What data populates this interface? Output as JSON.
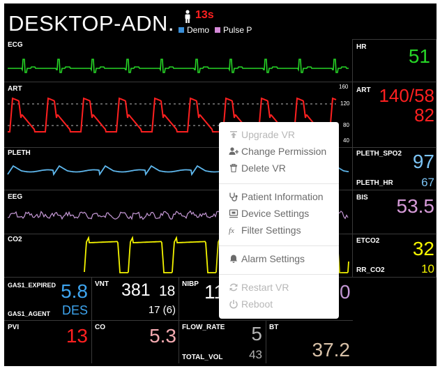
{
  "header": {
    "title": "DESKTOP-ADN.",
    "timer": "13s",
    "legend": [
      {
        "label": "Demo",
        "color": "#3a8fd8"
      },
      {
        "label": "Pulse P",
        "color": "#d58ad8"
      }
    ]
  },
  "waveforms": {
    "ecg": {
      "label": "ECG",
      "color": "#27d627"
    },
    "art": {
      "label": "ART",
      "color": "#ff2020",
      "scale": [
        "160",
        "120",
        "80",
        "40"
      ]
    },
    "pleth": {
      "label": "PLETH",
      "color": "#5fb8ee"
    },
    "eeg": {
      "label": "EEG",
      "color": "#c79ad8"
    },
    "co2": {
      "label": "CO2",
      "color": "#f5f500"
    }
  },
  "vitals": {
    "hr": {
      "label": "HR",
      "value": "51",
      "color": "#27d627"
    },
    "art": {
      "label": "ART",
      "value1": "140/58",
      "value2": "82",
      "color": "#ff2020"
    },
    "pleth": {
      "label1": "PLETH_SPO2",
      "value1": "97",
      "label2": "PLETH_HR",
      "value2": "67",
      "color": "#7cc4f5"
    },
    "bis": {
      "label": "BIS",
      "value": "53.5",
      "color": "#d79bd9"
    },
    "etco2": {
      "label1": "ETCO2",
      "value1": "32",
      "label2": "RR_CO2",
      "value2": "10",
      "color": "#f5f500"
    }
  },
  "bottom": {
    "gas": {
      "label1": "GAS1_EXPIRED",
      "value1": "5.8",
      "label2": "GAS1_AGENT",
      "value2": "DES",
      "color": "#3ea5f0"
    },
    "vnt": {
      "label": "VNT",
      "value1": "381",
      "value2": "18",
      "value3": "17 (6)"
    },
    "nibp": {
      "label": "NIBP",
      "value": "11",
      "tail": "0",
      "color": "#ffffff",
      "tail_color": "#c79ad8"
    },
    "pvi": {
      "label": "PVI",
      "value": "13",
      "color": "#ff2020"
    },
    "co": {
      "label": "CO",
      "value": "5.3",
      "color": "#f4aab0"
    },
    "flow": {
      "label1": "FLOW_RATE",
      "value1": "5",
      "label2": "TOTAL_VOL",
      "value2": "43"
    },
    "bt": {
      "label": "BT",
      "value": "37.2",
      "color": "#d8c1a8"
    }
  },
  "context_menu": {
    "items": [
      {
        "label": "Upgrade VR",
        "icon": "upload-icon",
        "enabled": false
      },
      {
        "label": "Change Permission",
        "icon": "user-plus-icon",
        "enabled": true
      },
      {
        "label": "Delete VR",
        "icon": "trash-icon",
        "enabled": true
      },
      {
        "label": "Patient Information",
        "icon": "stethoscope-icon",
        "enabled": true
      },
      {
        "label": "Device Settings",
        "icon": "device-icon",
        "enabled": true
      },
      {
        "label": "Filter Settings",
        "icon": "function-icon",
        "enabled": true
      },
      {
        "label": "Alarm Settings",
        "icon": "bell-icon",
        "enabled": true
      },
      {
        "label": "Restart VR",
        "icon": "refresh-icon",
        "enabled": false
      },
      {
        "label": "Reboot",
        "icon": "power-icon",
        "enabled": false
      }
    ]
  }
}
